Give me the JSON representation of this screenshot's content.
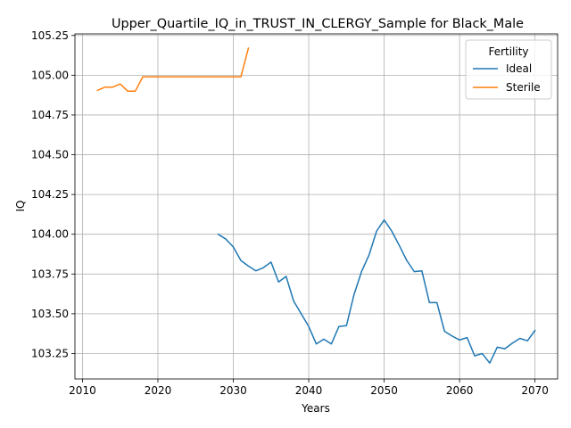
{
  "chart_data": {
    "type": "line",
    "title": "Upper_Quartile_IQ_in_TRUST_IN_CLERGY_Sample for Black_Male",
    "xlabel": "Years",
    "ylabel": "IQ",
    "xlim": [
      2009,
      2073
    ],
    "ylim": [
      103.09,
      105.26
    ],
    "xticks": [
      2010,
      2020,
      2030,
      2040,
      2050,
      2060,
      2070
    ],
    "yticks": [
      103.25,
      103.5,
      103.75,
      104.0,
      104.25,
      104.5,
      104.75,
      105.0,
      105.25
    ],
    "ytick_labels": [
      "103.25",
      "103.50",
      "103.75",
      "104.00",
      "104.25",
      "104.50",
      "104.75",
      "105.00",
      "105.25"
    ],
    "grid": true,
    "legend": {
      "title": "Fertility",
      "placement": "upper-right"
    },
    "series": [
      {
        "name": "Ideal",
        "color": "#1f77b4",
        "x": [
          2028,
          2029,
          2030,
          2031,
          2032,
          2033,
          2034,
          2035,
          2036,
          2037,
          2038,
          2039,
          2040,
          2041,
          2042,
          2043,
          2044,
          2045,
          2046,
          2047,
          2048,
          2049,
          2050,
          2051,
          2052,
          2053,
          2054,
          2055,
          2056,
          2057,
          2058,
          2059,
          2060,
          2061,
          2062,
          2063,
          2064,
          2065,
          2066,
          2067,
          2068,
          2069,
          2070
        ],
        "y": [
          104.0,
          103.97,
          103.92,
          103.835,
          103.8,
          103.77,
          103.79,
          103.825,
          103.7,
          103.735,
          103.58,
          103.5,
          103.42,
          103.31,
          103.34,
          103.31,
          103.42,
          103.425,
          103.62,
          103.765,
          103.87,
          104.02,
          104.09,
          104.02,
          103.93,
          103.835,
          103.765,
          103.77,
          103.57,
          103.57,
          103.39,
          103.36,
          103.335,
          103.35,
          103.235,
          103.25,
          103.19,
          103.29,
          103.28,
          103.315,
          103.345,
          103.33,
          103.395
        ]
      },
      {
        "name": "Sterile",
        "color": "#ff7f0e",
        "x": [
          2012,
          2013,
          2014,
          2015,
          2016,
          2017,
          2018,
          2019,
          2020,
          2021,
          2022,
          2023,
          2024,
          2025,
          2026,
          2027,
          2028,
          2029,
          2030,
          2031,
          2032
        ],
        "y": [
          104.905,
          104.925,
          104.925,
          104.945,
          104.9,
          104.9,
          104.99,
          104.99,
          104.99,
          104.99,
          104.99,
          104.99,
          104.99,
          104.99,
          104.99,
          104.99,
          104.99,
          104.99,
          104.99,
          104.99,
          105.17
        ]
      }
    ]
  }
}
